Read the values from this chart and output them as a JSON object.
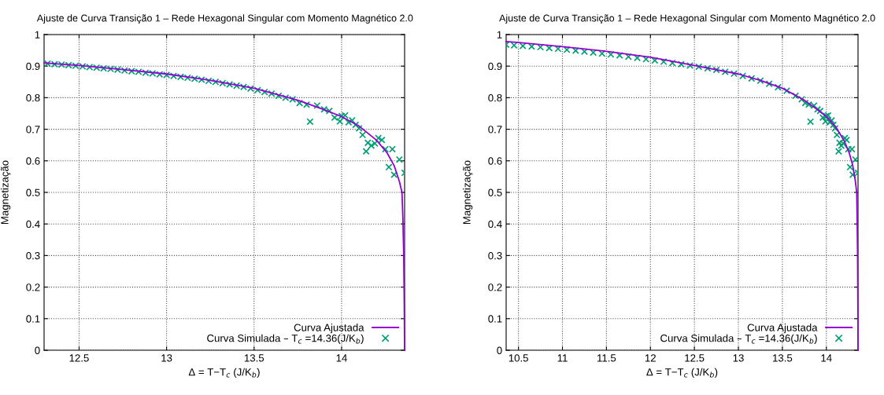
{
  "chart_data": [
    {
      "type": "scatter",
      "title": "Ajuste de Curva Transição 1 – Rede Hexagonal Singular com Momento Magnético 2.0",
      "xlabel": "Δ = T−T$_{c}$ (J/K$_{b}$)",
      "ylabel": "Magnetização",
      "xlim": [
        12.3,
        14.36
      ],
      "xticks": [
        12.5,
        13,
        13.5,
        14
      ],
      "ylim": [
        0,
        1
      ],
      "yticks": [
        0,
        0.1,
        0.2,
        0.3,
        0.4,
        0.5,
        0.6,
        0.7,
        0.8,
        0.9,
        1
      ],
      "grid": true,
      "legend": "bottom right",
      "series": [
        {
          "name": "Curva Ajustada",
          "type": "line",
          "color": "#9400d3",
          "marker": "none",
          "line_style": "solid",
          "x": [
            12.3,
            12.5,
            12.75,
            13,
            13.25,
            13.5,
            13.75,
            13.9,
            14,
            14.1,
            14.2,
            14.26,
            14.3,
            14.33,
            14.345,
            14.35,
            14.355,
            14.358,
            14.36
          ],
          "values": [
            0.91,
            0.902,
            0.889,
            0.875,
            0.855,
            0.83,
            0.792,
            0.762,
            0.74,
            0.71,
            0.665,
            0.625,
            0.585,
            0.535,
            0.5,
            0.42,
            0.3,
            0.15,
            0
          ]
        },
        {
          "name": "Curva Simulada – T$_{c}$ =14.36(J/K$_{b}$)",
          "color": "#009e73",
          "marker": "cross",
          "x": [
            12.32,
            12.36,
            12.4,
            12.44,
            12.48,
            12.52,
            12.56,
            12.6,
            12.64,
            12.68,
            12.72,
            12.76,
            12.8,
            12.84,
            12.88,
            12.92,
            12.96,
            13.0,
            13.04,
            13.08,
            13.12,
            13.16,
            13.2,
            13.24,
            13.28,
            13.32,
            13.36,
            13.4,
            13.44,
            13.48,
            13.52,
            13.56,
            13.6,
            13.64,
            13.68,
            13.72,
            13.76,
            13.8,
            13.82,
            13.86,
            13.9,
            13.93,
            13.96,
            13.99,
            14.0,
            14.02,
            14.04,
            14.06,
            14.08,
            14.1,
            14.12,
            14.14,
            14.15,
            14.17,
            14.19,
            14.21,
            14.23,
            14.25,
            14.27,
            14.29,
            14.3,
            14.33,
            14.36
          ],
          "values": [
            0.908,
            0.906,
            0.905,
            0.903,
            0.901,
            0.899,
            0.897,
            0.895,
            0.893,
            0.891,
            0.889,
            0.886,
            0.884,
            0.882,
            0.879,
            0.877,
            0.874,
            0.872,
            0.869,
            0.866,
            0.863,
            0.86,
            0.857,
            0.853,
            0.85,
            0.846,
            0.842,
            0.838,
            0.834,
            0.829,
            0.824,
            0.818,
            0.813,
            0.806,
            0.8,
            0.795,
            0.783,
            0.778,
            0.724,
            0.775,
            0.763,
            0.758,
            0.737,
            0.725,
            0.742,
            0.744,
            0.722,
            0.728,
            0.714,
            0.703,
            0.682,
            0.63,
            0.657,
            0.648,
            0.655,
            0.672,
            0.666,
            0.637,
            0.58,
            0.637,
            0.556,
            0.604,
            0.562
          ]
        }
      ]
    },
    {
      "type": "scatter",
      "title": "Ajuste de Curva Transição 1 – Rede Hexagonal Singular com Momento Magnético 2.0",
      "xlabel": "Δ = T−T$_{c}$ (J/K$_{b}$)",
      "ylabel": "Magnetização",
      "xlim": [
        10.36,
        14.36
      ],
      "xticks": [
        10.5,
        11,
        11.5,
        12,
        12.5,
        13,
        13.5,
        14
      ],
      "ylim": [
        0,
        1
      ],
      "yticks": [
        0,
        0.1,
        0.2,
        0.3,
        0.4,
        0.5,
        0.6,
        0.7,
        0.8,
        0.9,
        1
      ],
      "grid": true,
      "legend": "bottom right",
      "series": [
        {
          "name": "Curva Ajustada",
          "type": "line",
          "color": "#9400d3",
          "marker": "none",
          "line_style": "solid",
          "x": [
            10.36,
            10.5,
            11,
            11.5,
            12,
            12.5,
            13,
            13.25,
            13.5,
            13.75,
            13.9,
            14,
            14.1,
            14.2,
            14.26,
            14.3,
            14.33,
            14.345,
            14.35,
            14.355,
            14.358,
            14.36
          ],
          "values": [
            0.978,
            0.975,
            0.962,
            0.947,
            0.928,
            0.902,
            0.875,
            0.855,
            0.83,
            0.792,
            0.762,
            0.74,
            0.71,
            0.665,
            0.625,
            0.585,
            0.535,
            0.5,
            0.42,
            0.3,
            0.15,
            0
          ]
        },
        {
          "name": "Curva Simulada – T$_{c}$ =14.36(J/K$_{b}$)",
          "color": "#009e73",
          "marker": "cross",
          "x": [
            10.36,
            10.45,
            10.55,
            10.65,
            10.75,
            10.85,
            10.95,
            11.05,
            11.15,
            11.25,
            11.35,
            11.45,
            11.55,
            11.65,
            11.75,
            11.85,
            11.95,
            12.05,
            12.15,
            12.25,
            12.35,
            12.45,
            12.55,
            12.65,
            12.75,
            12.85,
            12.95,
            13.05,
            13.15,
            13.25,
            13.35,
            13.45,
            13.55,
            13.65,
            13.72,
            13.76,
            13.8,
            13.82,
            13.86,
            13.9,
            13.93,
            13.96,
            13.99,
            14.0,
            14.02,
            14.04,
            14.06,
            14.08,
            14.1,
            14.12,
            14.14,
            14.15,
            14.17,
            14.19,
            14.21,
            14.23,
            14.25,
            14.27,
            14.29,
            14.3,
            14.33,
            14.36
          ],
          "values": [
            0.968,
            0.966,
            0.964,
            0.962,
            0.96,
            0.957,
            0.955,
            0.952,
            0.949,
            0.946,
            0.943,
            0.94,
            0.937,
            0.934,
            0.93,
            0.926,
            0.922,
            0.918,
            0.914,
            0.91,
            0.906,
            0.902,
            0.898,
            0.893,
            0.888,
            0.882,
            0.876,
            0.869,
            0.861,
            0.854,
            0.844,
            0.833,
            0.822,
            0.806,
            0.795,
            0.783,
            0.778,
            0.724,
            0.775,
            0.763,
            0.758,
            0.737,
            0.725,
            0.742,
            0.744,
            0.722,
            0.728,
            0.714,
            0.703,
            0.682,
            0.63,
            0.657,
            0.648,
            0.655,
            0.672,
            0.666,
            0.637,
            0.58,
            0.637,
            0.556,
            0.604,
            0.562
          ]
        }
      ]
    }
  ]
}
